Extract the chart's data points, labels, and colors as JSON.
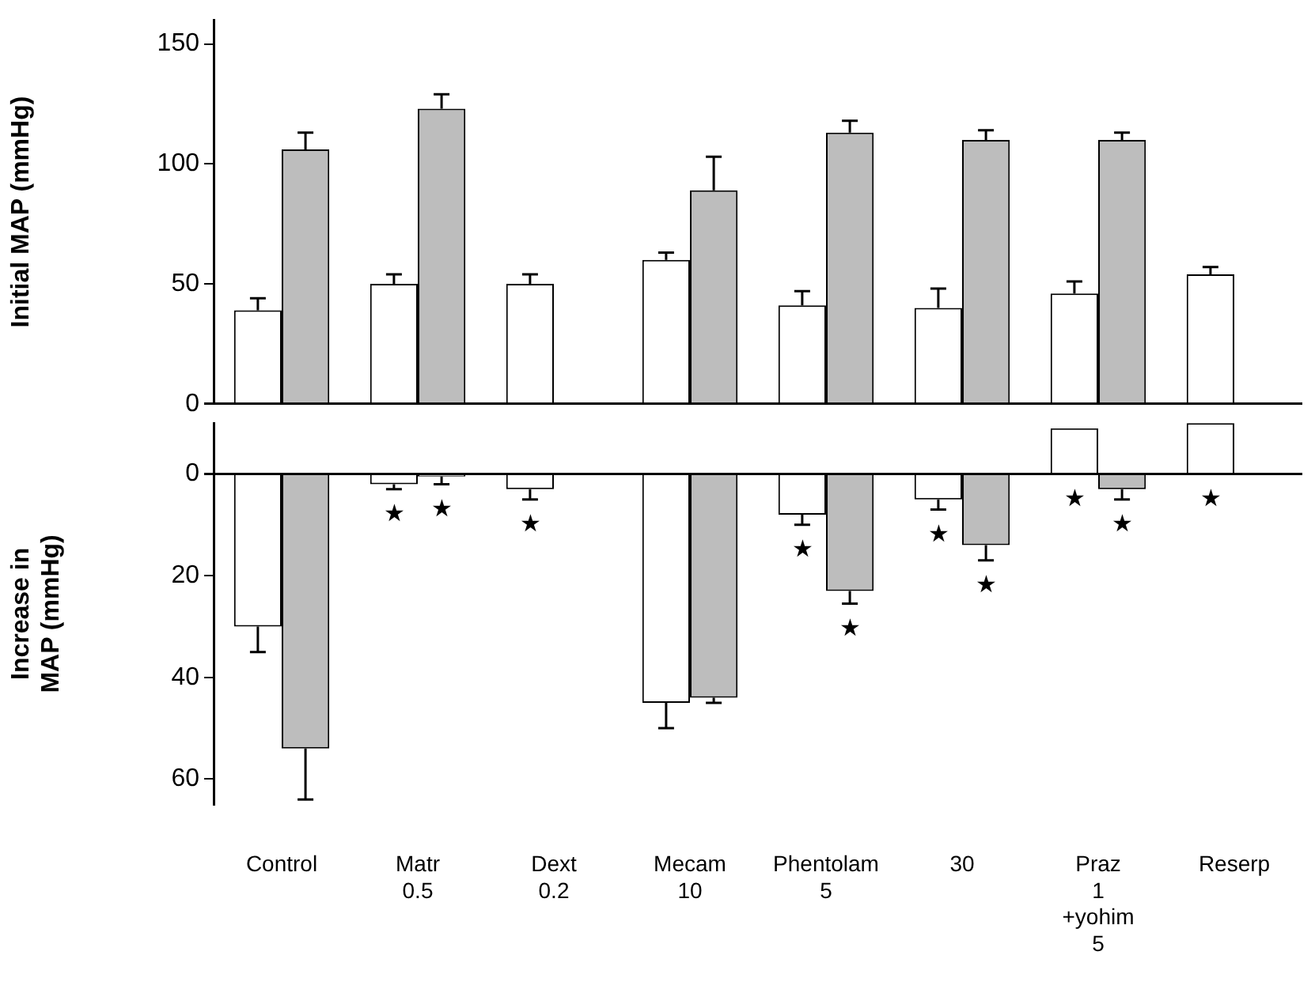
{
  "chart_data": [
    {
      "type": "bar",
      "ylabel": "Initial MAP (mmHg)",
      "categories": [
        null,
        null,
        null,
        null,
        null,
        null,
        null,
        null
      ],
      "series": [
        {
          "color": "#ffffff",
          "values": [
            39,
            50,
            50,
            60,
            41,
            40,
            46,
            54
          ],
          "errors": [
            5,
            4,
            4,
            3,
            6,
            8,
            5,
            3
          ]
        },
        {
          "color": "#bdbdbd",
          "values": [
            106,
            123,
            null,
            89,
            113,
            110,
            110,
            null
          ],
          "errors": [
            7,
            6,
            null,
            14,
            5,
            4,
            3,
            null
          ]
        }
      ],
      "ylim": [
        0,
        160
      ],
      "yticks": [
        0,
        50,
        100,
        150
      ],
      "tick_labels": "y"
    },
    {
      "type": "bar",
      "ylabel": "Increase in\nMAP (mmHg)",
      "categories": [
        "Control",
        "Matr\n0.5",
        "Dext\n0.2",
        "Mecam\n10",
        "Phentolam\n5",
        "30",
        "Praz\n1\n+yohim\n5",
        "Reserp"
      ],
      "series": [
        {
          "color": "#ffffff",
          "values": [
            30,
            2,
            3,
            45,
            8,
            5,
            -9,
            -10
          ],
          "errors": [
            5,
            1,
            2,
            5,
            2,
            2,
            null,
            null
          ],
          "value_labels": [
            null,
            "★",
            "★",
            null,
            "★",
            "★",
            "★",
            "★"
          ]
        },
        {
          "color": "#bdbdbd",
          "values": [
            54,
            0.5,
            null,
            44,
            23,
            14,
            3,
            null
          ],
          "errors": [
            10,
            1.5,
            null,
            1,
            2.5,
            3,
            2,
            null
          ],
          "value_labels": [
            null,
            "★",
            null,
            null,
            "★",
            "★",
            "★",
            null
          ]
        }
      ],
      "ylim": [
        65,
        -10
      ],
      "yticks": [
        0,
        20,
        40,
        60
      ]
    }
  ]
}
